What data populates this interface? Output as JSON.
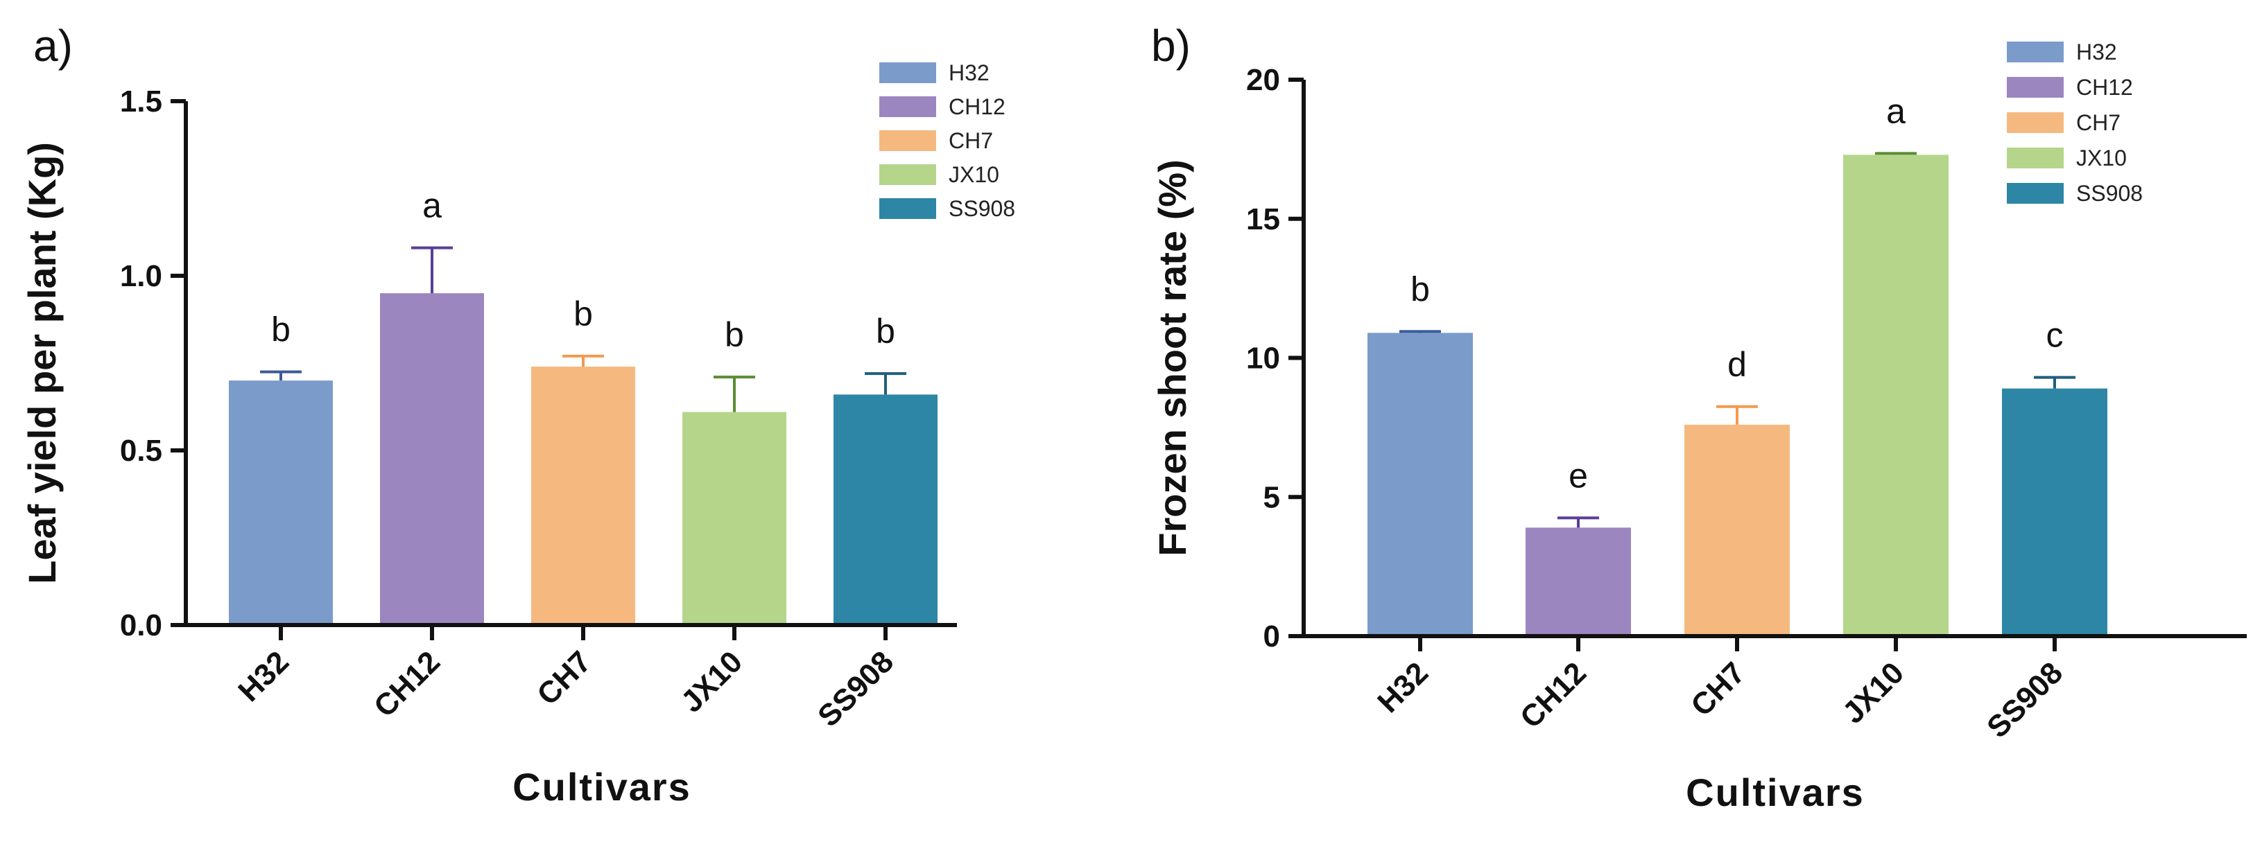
{
  "chart_data": [
    {
      "type": "bar",
      "panel_label": "a)",
      "categories": [
        "H32",
        "CH12",
        "CH7",
        "JX10",
        "SS908"
      ],
      "values": [
        0.7,
        0.95,
        0.74,
        0.61,
        0.66
      ],
      "errors": [
        0.025,
        0.13,
        0.03,
        0.1,
        0.06
      ],
      "significance": [
        "b",
        "a",
        "b",
        "b",
        "b"
      ],
      "colors": [
        "#7b9bcb",
        "#9b86bf",
        "#f5b97f",
        "#b5d68a",
        "#2d86a5"
      ],
      "error_colors": [
        "#3b5a9a",
        "#5a3d96",
        "#f29a4f",
        "#5b8c34",
        "#1f5f7c"
      ],
      "ylabel": "Leaf yield per plant (Kg)",
      "xlabel": "Cultivars",
      "ylim": [
        0,
        1.5
      ],
      "yticks": [
        "0.0",
        "0.5",
        "1.0",
        "1.5"
      ],
      "legend_position": "top-right"
    },
    {
      "type": "bar",
      "panel_label": "b)",
      "categories": [
        "H32",
        "CH12",
        "CH7",
        "JX10",
        "SS908"
      ],
      "values": [
        10.9,
        3.9,
        7.6,
        17.3,
        8.9
      ],
      "errors": [
        0.05,
        0.35,
        0.65,
        0.05,
        0.4
      ],
      "significance": [
        "b",
        "e",
        "d",
        "a",
        "c"
      ],
      "colors": [
        "#7b9bcb",
        "#9b86bf",
        "#f5b97f",
        "#b5d68a",
        "#2d86a5"
      ],
      "error_colors": [
        "#3b5a9a",
        "#5a3d96",
        "#f29a4f",
        "#5b8c34",
        "#1f5f7c"
      ],
      "ylabel": "Frozen shoot rate (%)",
      "xlabel": "Cultivars",
      "ylim": [
        0,
        20
      ],
      "yticks": [
        "0",
        "5",
        "10",
        "15",
        "20"
      ],
      "legend_position": "top-right"
    }
  ]
}
